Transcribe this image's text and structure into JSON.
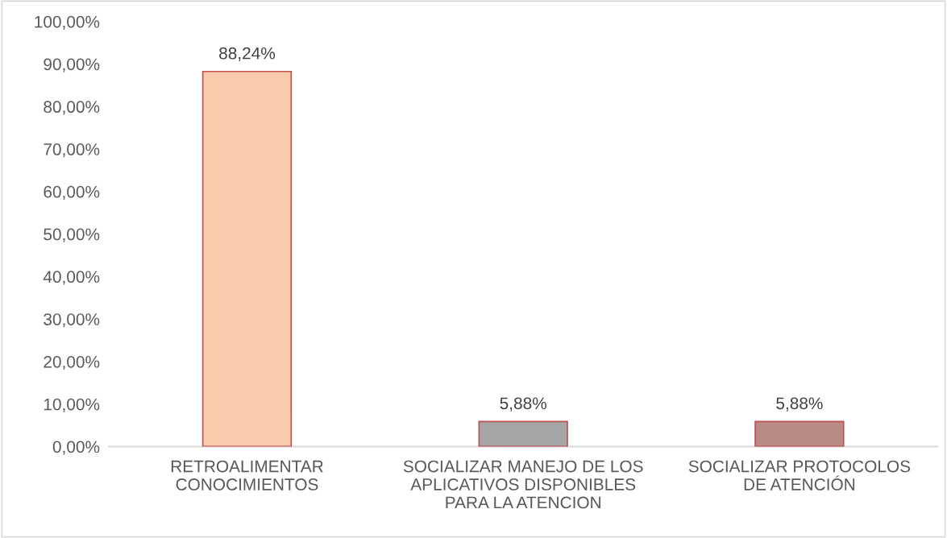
{
  "chart_data": {
    "type": "bar",
    "categories": [
      "RETROALIMENTAR\nCONOCIMIENTOS",
      "SOCIALIZAR MANEJO DE LOS\nAPLICATIVOS DISPONIBLES\nPARA LA ATENCION",
      "SOCIALIZAR PROTOCOLOS\nDE ATENCIÓN"
    ],
    "values": [
      88.24,
      5.88,
      5.88
    ],
    "colors": [
      "#f8cbad",
      "#a5a5a5",
      "#b98b86"
    ],
    "value_labels": [
      "88,24%",
      "5,88%",
      "5,88%"
    ],
    "ylim": [
      0,
      100
    ],
    "yticks": [
      {
        "value": 0,
        "label": "0,00%"
      },
      {
        "value": 10,
        "label": "10,00%"
      },
      {
        "value": 20,
        "label": "20,00%"
      },
      {
        "value": 30,
        "label": "30,00%"
      },
      {
        "value": 40,
        "label": "40,00%"
      },
      {
        "value": 50,
        "label": "50,00%"
      },
      {
        "value": 60,
        "label": "60,00%"
      },
      {
        "value": 70,
        "label": "70,00%"
      },
      {
        "value": 80,
        "label": "80,00%"
      },
      {
        "value": 90,
        "label": "90,00%"
      },
      {
        "value": 100,
        "label": "100,00%"
      }
    ],
    "grid": false,
    "legend": false
  }
}
